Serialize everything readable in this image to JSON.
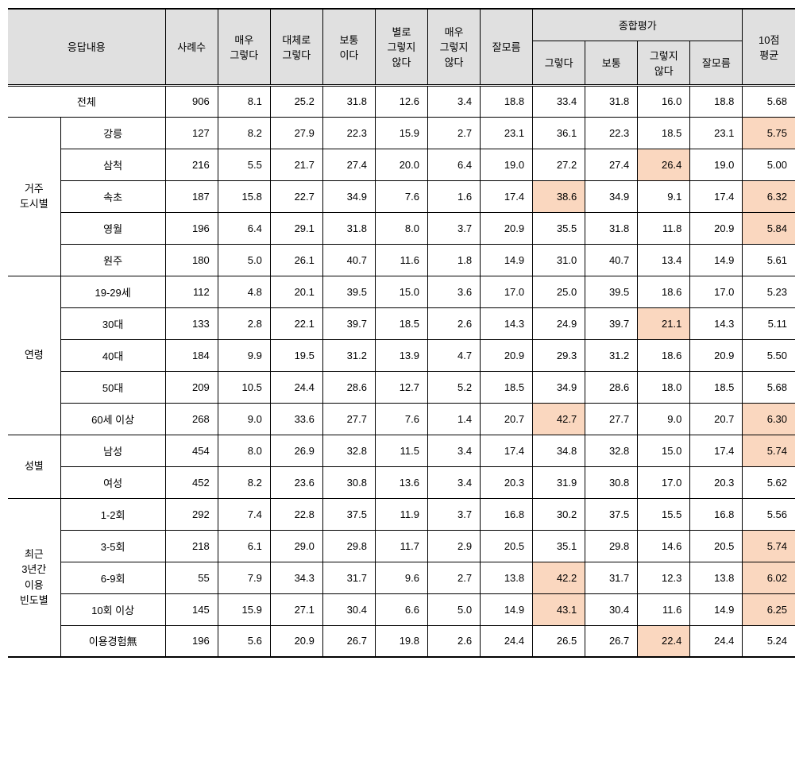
{
  "headers": {
    "response_content": "응답내용",
    "sample_count": "사례수",
    "very_agree": "매우\n그렇다",
    "mostly_agree": "대체로\n그렇다",
    "neutral": "보통\n이다",
    "mostly_disagree": "별로\n그렇지\n않다",
    "very_disagree": "매우\n그렇지\n않다",
    "dont_know": "잘모름",
    "overall_eval": "종합평가",
    "eval_agree": "그렇다",
    "eval_neutral": "보통",
    "eval_disagree": "그렇지\n않다",
    "eval_dont_know": "잘모름",
    "avg_10pt": "10점\n평균"
  },
  "total": {
    "label": "전체",
    "values": [
      "906",
      "8.1",
      "25.2",
      "31.8",
      "12.6",
      "3.4",
      "18.8",
      "33.4",
      "31.8",
      "16.0",
      "18.8",
      "5.68"
    ]
  },
  "groups": [
    {
      "label": "거주\n도시별",
      "rows": [
        {
          "label": "강릉",
          "values": [
            "127",
            "8.2",
            "27.9",
            "22.3",
            "15.9",
            "2.7",
            "23.1",
            "36.1",
            "22.3",
            "18.5",
            "23.1",
            "5.75"
          ],
          "hl": [
            11
          ]
        },
        {
          "label": "삼척",
          "values": [
            "216",
            "5.5",
            "21.7",
            "27.4",
            "20.0",
            "6.4",
            "19.0",
            "27.2",
            "27.4",
            "26.4",
            "19.0",
            "5.00"
          ],
          "hl": [
            9
          ]
        },
        {
          "label": "속초",
          "values": [
            "187",
            "15.8",
            "22.7",
            "34.9",
            "7.6",
            "1.6",
            "17.4",
            "38.6",
            "34.9",
            "9.1",
            "17.4",
            "6.32"
          ],
          "hl": [
            7,
            11
          ]
        },
        {
          "label": "영월",
          "values": [
            "196",
            "6.4",
            "29.1",
            "31.8",
            "8.0",
            "3.7",
            "20.9",
            "35.5",
            "31.8",
            "11.8",
            "20.9",
            "5.84"
          ],
          "hl": [
            11
          ]
        },
        {
          "label": "원주",
          "values": [
            "180",
            "5.0",
            "26.1",
            "40.7",
            "11.6",
            "1.8",
            "14.9",
            "31.0",
            "40.7",
            "13.4",
            "14.9",
            "5.61"
          ],
          "hl": []
        }
      ]
    },
    {
      "label": "연령",
      "rows": [
        {
          "label": "19-29세",
          "values": [
            "112",
            "4.8",
            "20.1",
            "39.5",
            "15.0",
            "3.6",
            "17.0",
            "25.0",
            "39.5",
            "18.6",
            "17.0",
            "5.23"
          ],
          "hl": []
        },
        {
          "label": "30대",
          "values": [
            "133",
            "2.8",
            "22.1",
            "39.7",
            "18.5",
            "2.6",
            "14.3",
            "24.9",
            "39.7",
            "21.1",
            "14.3",
            "5.11"
          ],
          "hl": [
            9
          ]
        },
        {
          "label": "40대",
          "values": [
            "184",
            "9.9",
            "19.5",
            "31.2",
            "13.9",
            "4.7",
            "20.9",
            "29.3",
            "31.2",
            "18.6",
            "20.9",
            "5.50"
          ],
          "hl": []
        },
        {
          "label": "50대",
          "values": [
            "209",
            "10.5",
            "24.4",
            "28.6",
            "12.7",
            "5.2",
            "18.5",
            "34.9",
            "28.6",
            "18.0",
            "18.5",
            "5.68"
          ],
          "hl": []
        },
        {
          "label": "60세 이상",
          "values": [
            "268",
            "9.0",
            "33.6",
            "27.7",
            "7.6",
            "1.4",
            "20.7",
            "42.7",
            "27.7",
            "9.0",
            "20.7",
            "6.30"
          ],
          "hl": [
            7,
            11
          ]
        }
      ]
    },
    {
      "label": "성별",
      "rows": [
        {
          "label": "남성",
          "values": [
            "454",
            "8.0",
            "26.9",
            "32.8",
            "11.5",
            "3.4",
            "17.4",
            "34.8",
            "32.8",
            "15.0",
            "17.4",
            "5.74"
          ],
          "hl": [
            11
          ]
        },
        {
          "label": "여성",
          "values": [
            "452",
            "8.2",
            "23.6",
            "30.8",
            "13.6",
            "3.4",
            "20.3",
            "31.9",
            "30.8",
            "17.0",
            "20.3",
            "5.62"
          ],
          "hl": []
        }
      ]
    },
    {
      "label": "최근\n3년간\n이용\n빈도별",
      "rows": [
        {
          "label": "1-2회",
          "values": [
            "292",
            "7.4",
            "22.8",
            "37.5",
            "11.9",
            "3.7",
            "16.8",
            "30.2",
            "37.5",
            "15.5",
            "16.8",
            "5.56"
          ],
          "hl": []
        },
        {
          "label": "3-5회",
          "values": [
            "218",
            "6.1",
            "29.0",
            "29.8",
            "11.7",
            "2.9",
            "20.5",
            "35.1",
            "29.8",
            "14.6",
            "20.5",
            "5.74"
          ],
          "hl": [
            11
          ]
        },
        {
          "label": "6-9회",
          "values": [
            "55",
            "7.9",
            "34.3",
            "31.7",
            "9.6",
            "2.7",
            "13.8",
            "42.2",
            "31.7",
            "12.3",
            "13.8",
            "6.02"
          ],
          "hl": [
            7,
            11
          ]
        },
        {
          "label": "10회 이상",
          "values": [
            "145",
            "15.9",
            "27.1",
            "30.4",
            "6.6",
            "5.0",
            "14.9",
            "43.1",
            "30.4",
            "11.6",
            "14.9",
            "6.25"
          ],
          "hl": [
            7,
            11
          ]
        },
        {
          "label": "이용경험無",
          "values": [
            "196",
            "5.6",
            "20.9",
            "26.7",
            "19.8",
            "2.6",
            "24.4",
            "26.5",
            "26.7",
            "22.4",
            "24.4",
            "5.24"
          ],
          "hl": [
            9
          ]
        }
      ]
    }
  ],
  "styling": {
    "header_bg": "#e0e0e0",
    "highlight_bg": "#fad7bf",
    "border_color": "#000000",
    "font_size": 13,
    "col_widths": {
      "group": 66,
      "rowlabel": 132,
      "data": 66
    }
  }
}
